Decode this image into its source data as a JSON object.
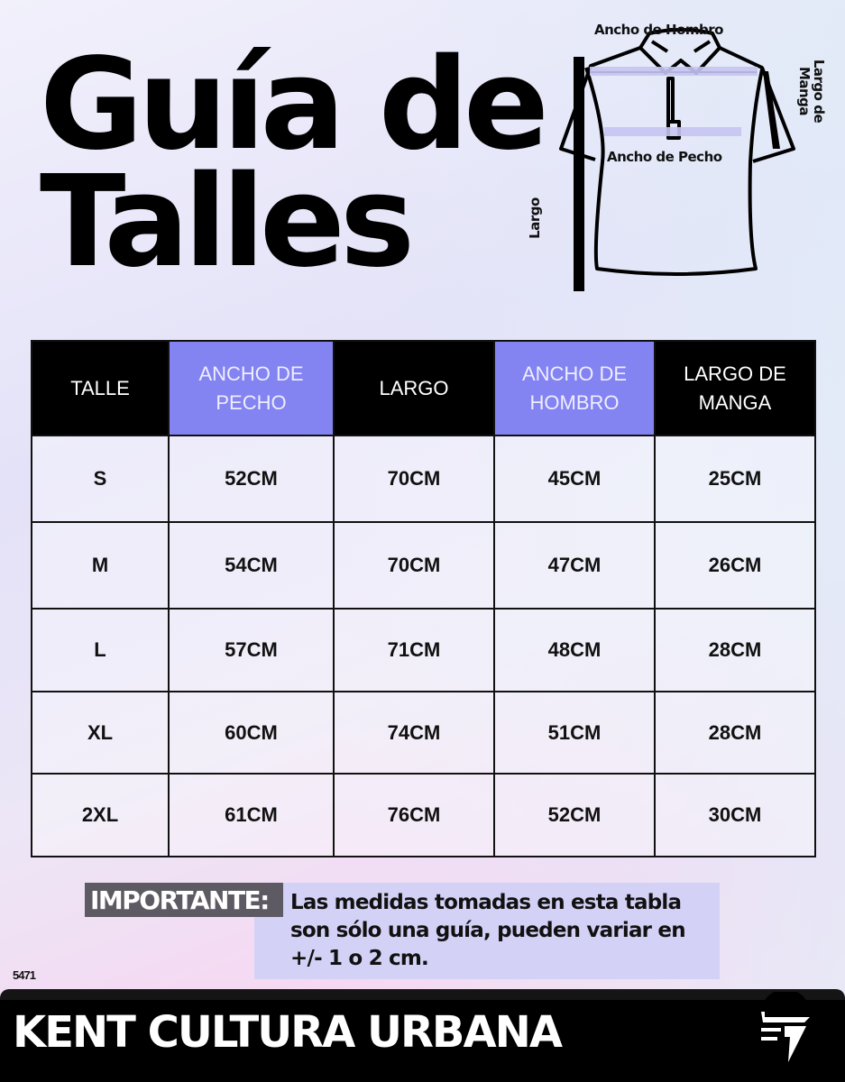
{
  "title": {
    "line1": "Guía de",
    "line2": "Talles"
  },
  "diagram": {
    "shoulder_label": "Ancho de Hombro",
    "sleeve_label": "Largo de Manga",
    "chest_label": "Ancho de Pecho",
    "length_label": "Largo",
    "highlight_color": "#c4c4f2"
  },
  "table": {
    "headers": [
      "TALLE",
      "ANCHO DE PECHO",
      "LARGO",
      "ANCHO DE HOMBRO",
      "LARGO DE MANGA"
    ],
    "header_accent": "#8383f2",
    "rows": [
      [
        "S",
        "52CM",
        "70CM",
        "45CM",
        "25CM"
      ],
      [
        "M",
        "54CM",
        "70CM",
        "47CM",
        "26CM"
      ],
      [
        "L",
        "57CM",
        "71CM",
        "48CM",
        "28CM"
      ],
      [
        "XL",
        "60CM",
        "74CM",
        "51CM",
        "28CM"
      ],
      [
        "2XL",
        "61CM",
        "76CM",
        "52CM",
        "30CM"
      ]
    ]
  },
  "note": {
    "label": "IMPORTANTE:",
    "text": "Las medidas tomadas en esta tabla son sólo una guía, pueden variar en +/- 1 o 2 cm."
  },
  "code": "5471",
  "footer": {
    "brand": "KENT CULTURA URBANA",
    "logo_icon": "kent-logo-icon"
  }
}
